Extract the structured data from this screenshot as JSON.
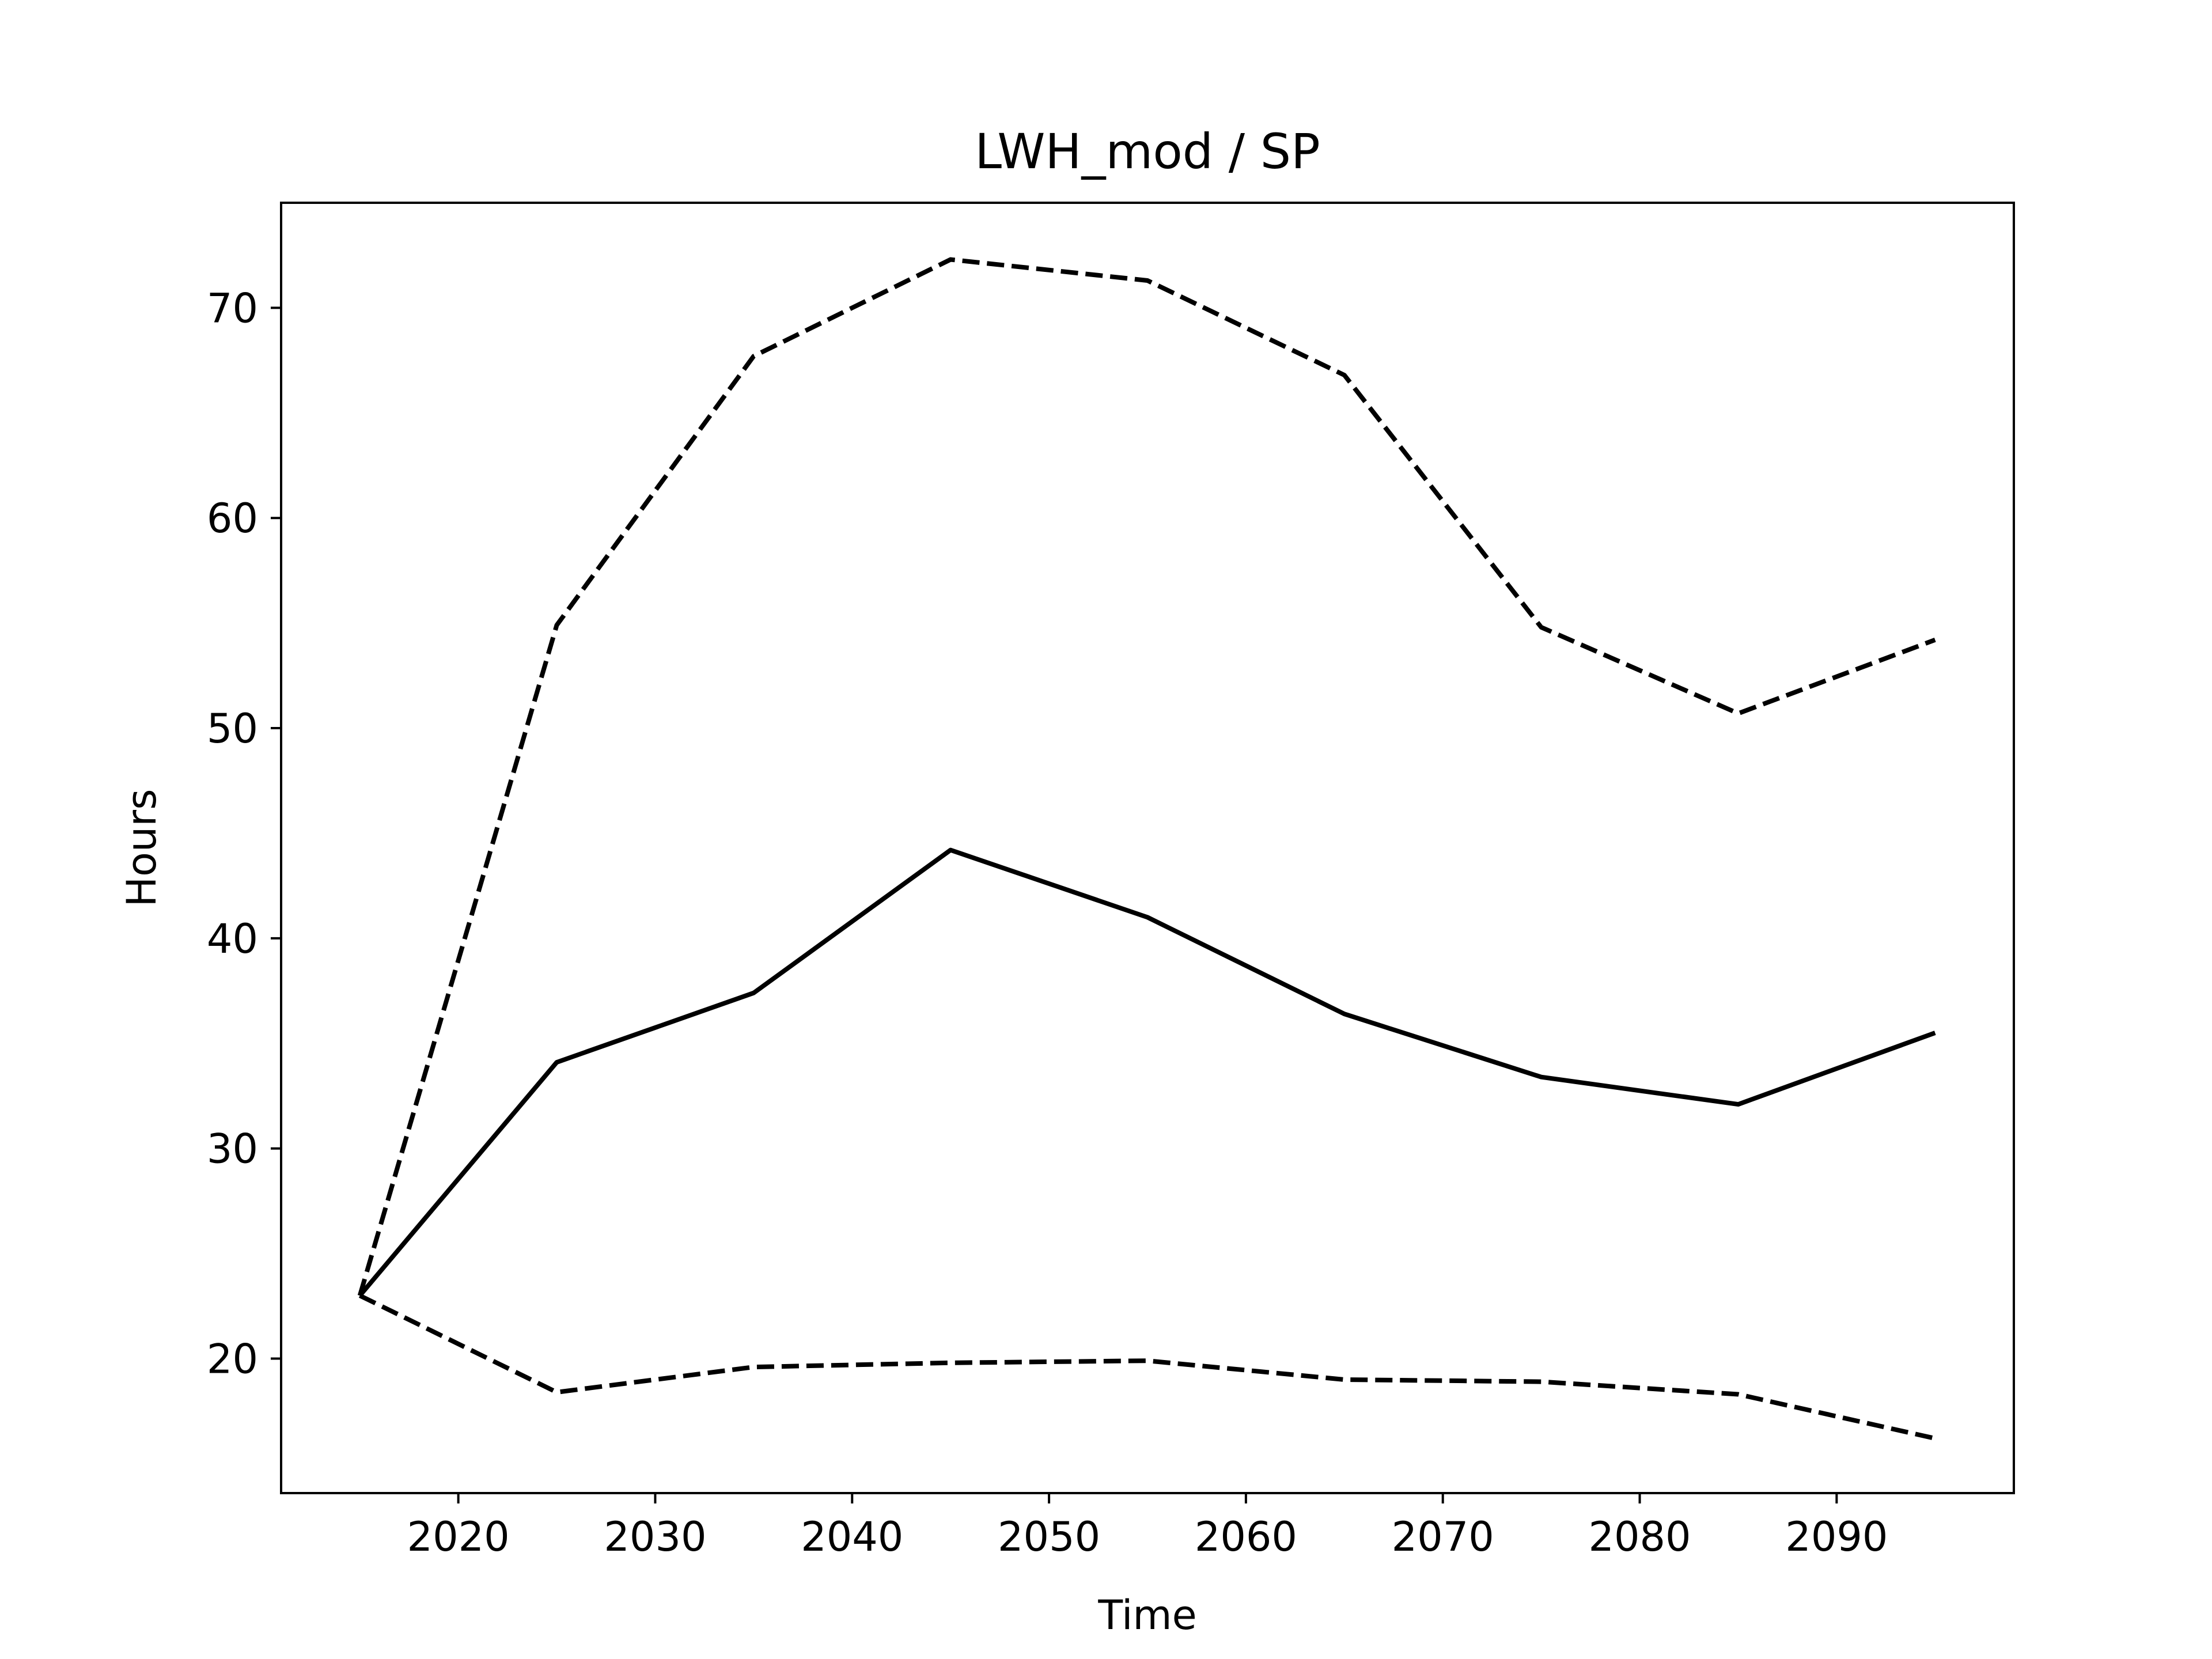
{
  "chart_data": {
    "type": "line",
    "title": "LWH_mod / SP",
    "xlabel": "Time",
    "ylabel": "Hours",
    "xlim": [
      2011,
      2099
    ],
    "ylim": [
      13.6,
      75.0
    ],
    "grid": false,
    "legend": "none",
    "x_ticks": [
      2020,
      2030,
      2040,
      2050,
      2060,
      2070,
      2080,
      2090
    ],
    "y_ticks": [
      20,
      30,
      40,
      50,
      60,
      70
    ],
    "x": [
      2015,
      2025,
      2035,
      2045,
      2055,
      2065,
      2075,
      2085,
      2095
    ],
    "series": [
      {
        "style": "solid",
        "color": "#000000",
        "values": [
          23.0,
          34.1,
          37.4,
          44.2,
          41.0,
          36.4,
          33.4,
          32.1,
          35.5
        ]
      },
      {
        "style": "dashed",
        "color": "#000000",
        "values": [
          23.0,
          54.9,
          67.7,
          72.3,
          71.3,
          66.8,
          54.8,
          50.7,
          54.2
        ]
      },
      {
        "style": "dashed",
        "color": "#000000",
        "values": [
          23.0,
          18.4,
          19.6,
          19.8,
          19.9,
          19.0,
          18.9,
          18.3,
          16.2
        ]
      }
    ]
  }
}
